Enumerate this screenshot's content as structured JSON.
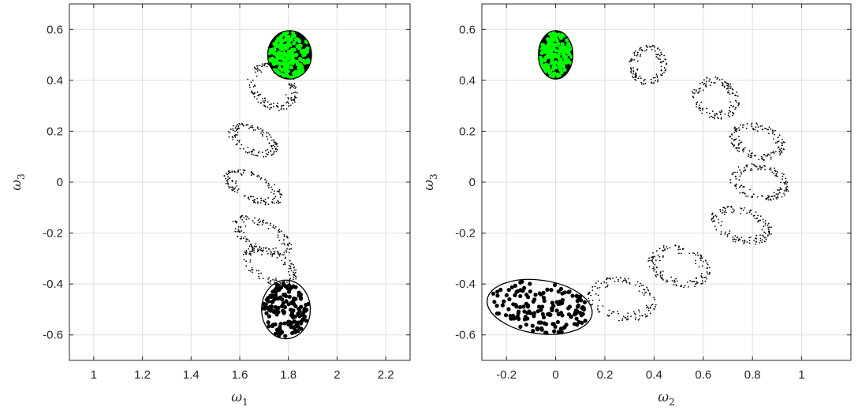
{
  "chart_data": [
    {
      "type": "scatter",
      "title": "",
      "xlabel": "ω",
      "xlabel_subscript": "1",
      "ylabel": "ω",
      "ylabel_subscript": "3",
      "xlim": [
        0.9,
        2.3
      ],
      "ylim": [
        -0.7,
        0.7
      ],
      "xticks": [
        1,
        1.2,
        1.4,
        1.6,
        1.8,
        2,
        2.2
      ],
      "xtick_labels": [
        "1",
        "1.2",
        "1.4",
        "1.6",
        "1.8",
        "2",
        "2.2"
      ],
      "yticks": [
        -0.6,
        -0.4,
        -0.2,
        0,
        0.2,
        0.4,
        0.6
      ],
      "ytick_labels": [
        "-0.6",
        "-0.4",
        "-0.2",
        "0",
        "0.2",
        "0.4",
        "0.6"
      ],
      "grid": true,
      "series": [
        {
          "marker": "large-dot",
          "color": "#000000",
          "center": [
            1.79,
            -0.5
          ],
          "semi_axes": [
            0.1,
            0.115
          ],
          "tilt_deg": 0,
          "n": 160,
          "outline": true,
          "outline_color": "#000000"
        },
        {
          "marker": "small-dot",
          "color": "#000000",
          "center": [
            1.725,
            -0.33
          ],
          "semi_axes": [
            0.12,
            0.065
          ],
          "tilt_deg": -25,
          "n": 130,
          "outline": false
        },
        {
          "marker": "small-dot",
          "color": "#000000",
          "center": [
            1.69,
            -0.21
          ],
          "semi_axes": [
            0.135,
            0.06
          ],
          "tilt_deg": -25,
          "n": 130,
          "outline": false
        },
        {
          "marker": "small-dot",
          "color": "#000000",
          "center": [
            1.655,
            -0.02
          ],
          "semi_axes": [
            0.13,
            0.055
          ],
          "tilt_deg": -22,
          "n": 130,
          "outline": false
        },
        {
          "marker": "small-dot",
          "color": "#000000",
          "center": [
            1.655,
            0.165
          ],
          "semi_axes": [
            0.11,
            0.055
          ],
          "tilt_deg": -22,
          "n": 130,
          "outline": false
        },
        {
          "marker": "small-dot",
          "color": "#000000",
          "center": [
            1.735,
            0.375
          ],
          "semi_axes": [
            0.11,
            0.085
          ],
          "tilt_deg": -35,
          "n": 150,
          "outline": false
        },
        {
          "marker": "large-dot",
          "color": "#00ff00",
          "center": [
            1.805,
            0.5
          ],
          "semi_axes": [
            0.09,
            0.095
          ],
          "tilt_deg": 0,
          "n": 170,
          "outline": true,
          "outline_color": "#000000",
          "filled_background": "#000000"
        }
      ]
    },
    {
      "type": "scatter",
      "title": "",
      "xlabel": "ω",
      "xlabel_subscript": "2",
      "ylabel": "ω",
      "ylabel_subscript": "3",
      "xlim": [
        -0.3,
        1.2
      ],
      "ylim": [
        -0.7,
        0.7
      ],
      "xticks": [
        -0.2,
        0,
        0.2,
        0.4,
        0.6,
        0.8,
        1
      ],
      "xtick_labels": [
        "-0.2",
        "0",
        "0.2",
        "0.4",
        "0.6",
        "0.8",
        "1"
      ],
      "yticks": [
        -0.6,
        -0.4,
        -0.2,
        0,
        0.2,
        0.4,
        0.6
      ],
      "ytick_labels": [
        "-0.6",
        "-0.4",
        "-0.2",
        "0",
        "0.2",
        "0.4",
        "0.6"
      ],
      "grid": true,
      "series": [
        {
          "marker": "large-dot",
          "color": "#000000",
          "center": [
            -0.065,
            -0.49
          ],
          "semi_axes": [
            0.215,
            0.105
          ],
          "tilt_deg": -8,
          "n": 160,
          "outline": true,
          "outline_color": "#000000"
        },
        {
          "marker": "small-dot",
          "color": "#000000",
          "center": [
            0.27,
            -0.46
          ],
          "semi_axes": [
            0.14,
            0.085
          ],
          "tilt_deg": -10,
          "n": 130,
          "outline": false
        },
        {
          "marker": "small-dot",
          "color": "#000000",
          "center": [
            0.5,
            -0.33
          ],
          "semi_axes": [
            0.13,
            0.08
          ],
          "tilt_deg": -15,
          "n": 140,
          "outline": false
        },
        {
          "marker": "small-dot",
          "color": "#000000",
          "center": [
            0.755,
            -0.17
          ],
          "semi_axes": [
            0.13,
            0.07
          ],
          "tilt_deg": -15,
          "n": 140,
          "outline": false
        },
        {
          "marker": "small-dot",
          "color": "#000000",
          "center": [
            0.83,
            0.0
          ],
          "semi_axes": [
            0.125,
            0.07
          ],
          "tilt_deg": -10,
          "n": 140,
          "outline": false
        },
        {
          "marker": "small-dot",
          "color": "#000000",
          "center": [
            0.82,
            0.16
          ],
          "semi_axes": [
            0.115,
            0.07
          ],
          "tilt_deg": -15,
          "n": 140,
          "outline": false
        },
        {
          "marker": "small-dot",
          "color": "#000000",
          "center": [
            0.65,
            0.33
          ],
          "semi_axes": [
            0.1,
            0.08
          ],
          "tilt_deg": -25,
          "n": 130,
          "outline": false
        },
        {
          "marker": "small-dot",
          "color": "#000000",
          "center": [
            0.375,
            0.46
          ],
          "semi_axes": [
            0.075,
            0.08
          ],
          "tilt_deg": -35,
          "n": 120,
          "outline": false
        },
        {
          "marker": "large-dot",
          "color": "#00ff00",
          "center": [
            0.0,
            0.5
          ],
          "semi_axes": [
            0.07,
            0.095
          ],
          "tilt_deg": 0,
          "n": 150,
          "outline": true,
          "outline_color": "#000000",
          "filled_background": "#000000"
        }
      ]
    }
  ]
}
